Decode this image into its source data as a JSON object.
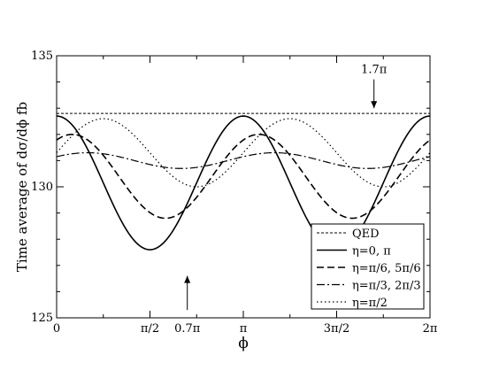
{
  "chart_data": {
    "type": "line",
    "title": "",
    "xlabel": "ϕ",
    "ylabel": "Time average of  dσ/dϕ  fb",
    "xlim": [
      0,
      6.2832
    ],
    "ylim": [
      125,
      135
    ],
    "x_ticks": [
      {
        "value": 0,
        "label": "0"
      },
      {
        "value": 1.5708,
        "label": "π/2"
      },
      {
        "value": 3.1416,
        "label": "π"
      },
      {
        "value": 4.7124,
        "label": "3π/2"
      },
      {
        "value": 6.2832,
        "label": "2π"
      }
    ],
    "x_extra_label": {
      "value": 2.1991,
      "label": "0.7π"
    },
    "y_ticks": [
      {
        "value": 125,
        "label": "125"
      },
      {
        "value": 130,
        "label": "130"
      },
      {
        "value": 135,
        "label": "135"
      }
    ],
    "grid": false,
    "legend_position": "lower-right",
    "annotations": [
      {
        "text": "1.7π",
        "x": 5.3407,
        "y_from": 134.1,
        "y_to": 133.0,
        "direction": "down"
      },
      {
        "text": "",
        "x": 2.1991,
        "y_from": 125.3,
        "y_to": 126.6,
        "direction": "up"
      }
    ],
    "series": [
      {
        "name": "QED",
        "style": "short-dash",
        "stroke_width": 1,
        "mean": 132.8,
        "amplitude": 0,
        "phase": 0
      },
      {
        "name": "η=0, π",
        "style": "solid",
        "stroke_width": 1.6,
        "mean": 130.15,
        "amplitude": 2.55,
        "phase": 0
      },
      {
        "name": "η=π/6, 5π/6",
        "style": "dash",
        "stroke_width": 1.6,
        "mean": 130.4,
        "amplitude": 1.6,
        "phase": 0.5236
      },
      {
        "name": "η=π/3, 2π/3",
        "style": "dash-dot",
        "stroke_width": 1.2,
        "mean": 131.0,
        "amplitude": 0.3,
        "phase": 1.0472
      },
      {
        "name": "η=π/2",
        "style": "dot",
        "stroke_width": 1.2,
        "mean": 131.3,
        "amplitude": 1.3,
        "phase": 1.5708
      }
    ]
  }
}
